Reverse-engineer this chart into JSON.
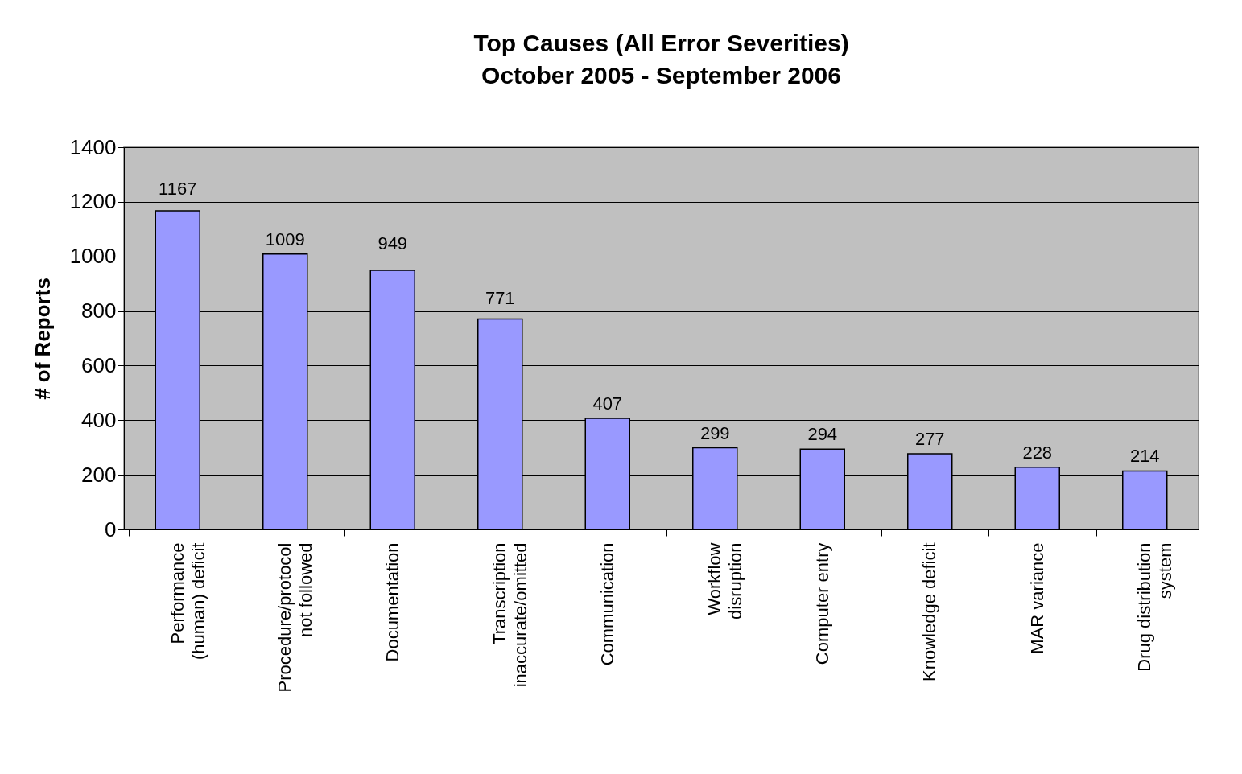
{
  "chart_data": {
    "type": "bar",
    "title": "Top Causes (All Error Severities)",
    "subtitle": "October 2005 - September 2006",
    "ylabel": "# of Reports",
    "categories": [
      "Performance\n(human) deficit",
      "Procedure/protocol\nnot followed",
      "Documentation",
      "Transcription\ninaccurate/omitted",
      "Communication",
      "Workflow\ndisruption",
      "Computer entry",
      "Knowledge deficit",
      "MAR variance",
      "Drug distribution\nsystem"
    ],
    "values": [
      1167,
      1009,
      949,
      771,
      407,
      299,
      294,
      277,
      228,
      214
    ],
    "color": "#9999ff",
    "ylim": [
      0,
      1400
    ],
    "yticks": [
      0,
      200,
      400,
      600,
      800,
      {
        "value": 1000,
        "label": "1000"
      },
      {
        "value": 1200,
        "label": "1200"
      },
      {
        "value": 1400,
        "label": "1400"
      }
    ],
    "grid": "y",
    "data_labels": true
  }
}
